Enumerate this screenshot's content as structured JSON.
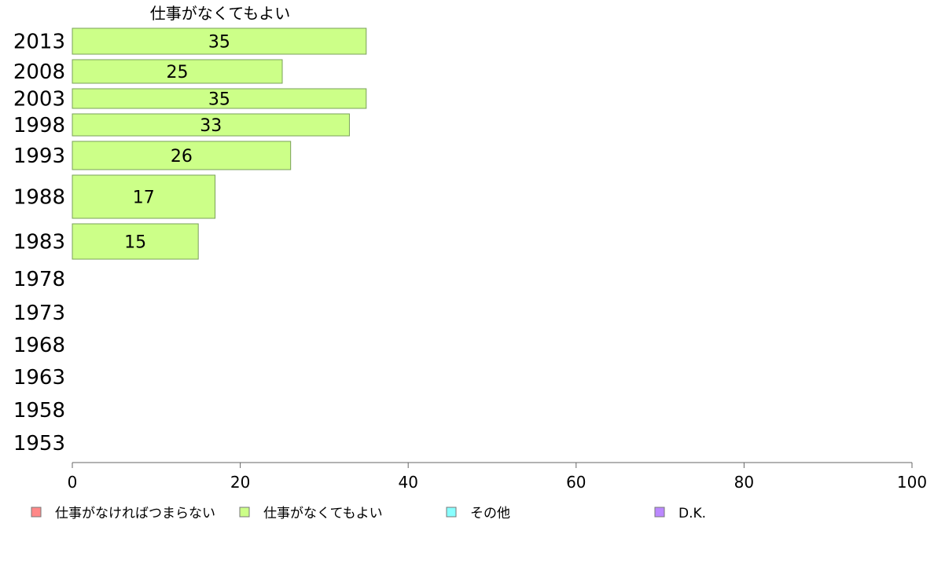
{
  "chart_data": {
    "type": "bar",
    "orientation": "horizontal",
    "title": "仕事がなくてもよい",
    "categories": [
      "2013",
      "2008",
      "2003",
      "1998",
      "1993",
      "1988",
      "1983",
      "1978",
      "1973",
      "1968",
      "1963",
      "1958",
      "1953"
    ],
    "series": [
      {
        "name": "仕事がなくてもよい",
        "color": "#ccff88",
        "values": [
          35,
          25,
          35,
          33,
          26,
          17,
          15,
          null,
          null,
          null,
          null,
          null,
          null
        ],
        "labels": [
          "35",
          "25",
          "35",
          "33",
          "26",
          "17",
          "15",
          "",
          "",
          "",
          "",
          "",
          ""
        ]
      }
    ],
    "xlim": [
      0,
      100
    ],
    "xticks": [
      "0",
      "20",
      "40",
      "60",
      "80",
      "100"
    ],
    "grid": false,
    "legend_position": "bottom",
    "legend": [
      {
        "label": "仕事がなければつまらない",
        "color": "#ff8888"
      },
      {
        "label": "仕事がなくてもよい",
        "color": "#ccff88"
      },
      {
        "label": "その他",
        "color": "#88ffff"
      },
      {
        "label": "D.K.",
        "color": "#bb88ff"
      }
    ]
  }
}
